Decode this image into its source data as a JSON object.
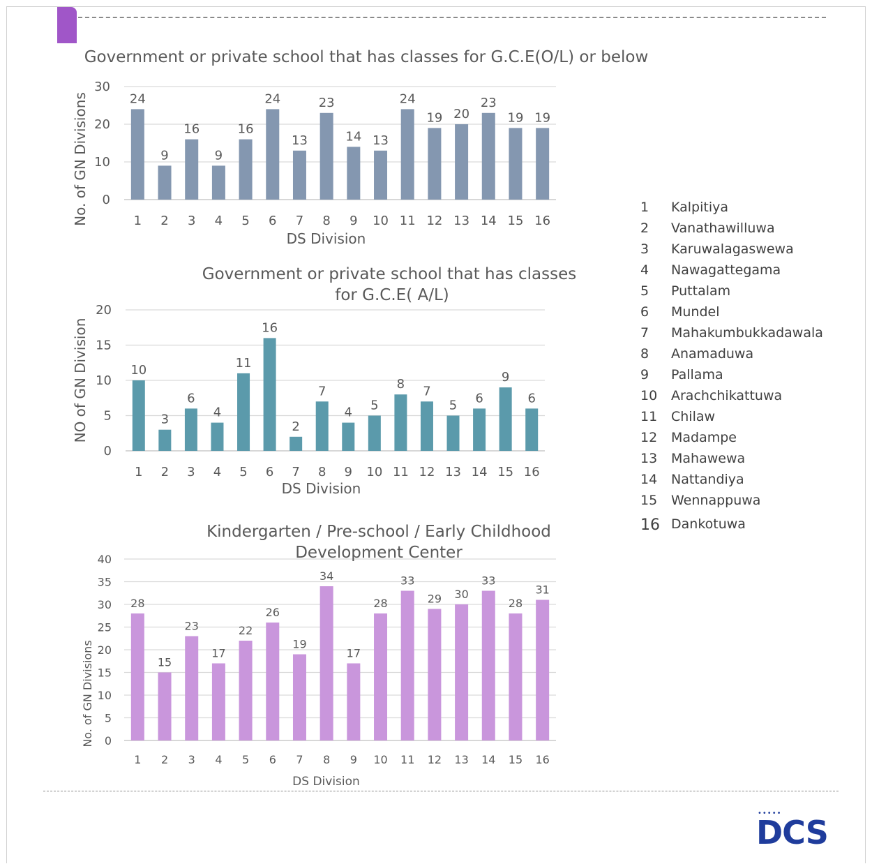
{
  "chart_data": [
    {
      "type": "bar",
      "title": "Government or private school that has classes for G.C.E(O/L) or below",
      "xlabel": "DS Division",
      "ylabel": "No. of GN Divisions",
      "categories": [
        "1",
        "2",
        "3",
        "4",
        "5",
        "6",
        "7",
        "8",
        "9",
        "10",
        "11",
        "12",
        "13",
        "14",
        "15",
        "16"
      ],
      "values": [
        24,
        9,
        16,
        9,
        16,
        24,
        13,
        23,
        14,
        13,
        24,
        19,
        20,
        23,
        19,
        19
      ],
      "ylim": [
        0,
        30
      ],
      "yticks": [
        0,
        10,
        20,
        30
      ],
      "color": "#8497b0",
      "grid": true
    },
    {
      "type": "bar",
      "title": "Government or private school that has classes for G.C.E( A/L)",
      "xlabel": "DS Division",
      "ylabel": "NO of GN Division",
      "categories": [
        "1",
        "2",
        "3",
        "4",
        "5",
        "6",
        "7",
        "8",
        "9",
        "10",
        "11",
        "12",
        "13",
        "14",
        "15",
        "16"
      ],
      "values": [
        10,
        3,
        6,
        4,
        11,
        16,
        2,
        7,
        4,
        5,
        8,
        7,
        5,
        6,
        9,
        6
      ],
      "ylim": [
        0,
        20
      ],
      "yticks": [
        0,
        5,
        10,
        15,
        20
      ],
      "color": "#5b9aab",
      "grid": true
    },
    {
      "type": "bar",
      "title": "Kindergarten / Pre-school / Early Childhood Development Center",
      "xlabel": "DS Division",
      "ylabel": "No. of GN Divisions",
      "categories": [
        "1",
        "2",
        "3",
        "4",
        "5",
        "6",
        "7",
        "8",
        "9",
        "10",
        "11",
        "12",
        "13",
        "14",
        "15",
        "16"
      ],
      "values": [
        28,
        15,
        23,
        17,
        22,
        26,
        19,
        34,
        17,
        28,
        33,
        29,
        30,
        33,
        28,
        31
      ],
      "ylim": [
        0,
        40
      ],
      "yticks": [
        0,
        5,
        10,
        15,
        20,
        25,
        30,
        35,
        40
      ],
      "color": "#c996dc",
      "grid": true
    }
  ],
  "legend": [
    {
      "num": "1",
      "name": "Kalpitiya"
    },
    {
      "num": "2",
      "name": "Vanathawilluwa"
    },
    {
      "num": "3",
      "name": "Karuwalagaswewa"
    },
    {
      "num": "4",
      "name": "Nawagattegama"
    },
    {
      "num": "5",
      "name": "Puttalam"
    },
    {
      "num": "6",
      "name": "Mundel"
    },
    {
      "num": "7",
      "name": "Mahakumbukkadawala"
    },
    {
      "num": "8",
      "name": "Anamaduwa"
    },
    {
      "num": "9",
      "name": "Pallama"
    },
    {
      "num": "10",
      "name": "Arachchikattuwa"
    },
    {
      "num": "11",
      "name": "Chilaw"
    },
    {
      "num": "12",
      "name": "Madampe"
    },
    {
      "num": "13",
      "name": "Mahawewa"
    },
    {
      "num": "14",
      "name": "Nattandiya"
    },
    {
      "num": "15",
      "name": "Wennappuwa"
    },
    {
      "num": "16",
      "name": "Dankotuwa"
    }
  ],
  "logo": {
    "text": "DCS",
    "dots": "•••••"
  },
  "colors": {
    "accent": "#a056c8",
    "logo": "#1f3c9c"
  }
}
